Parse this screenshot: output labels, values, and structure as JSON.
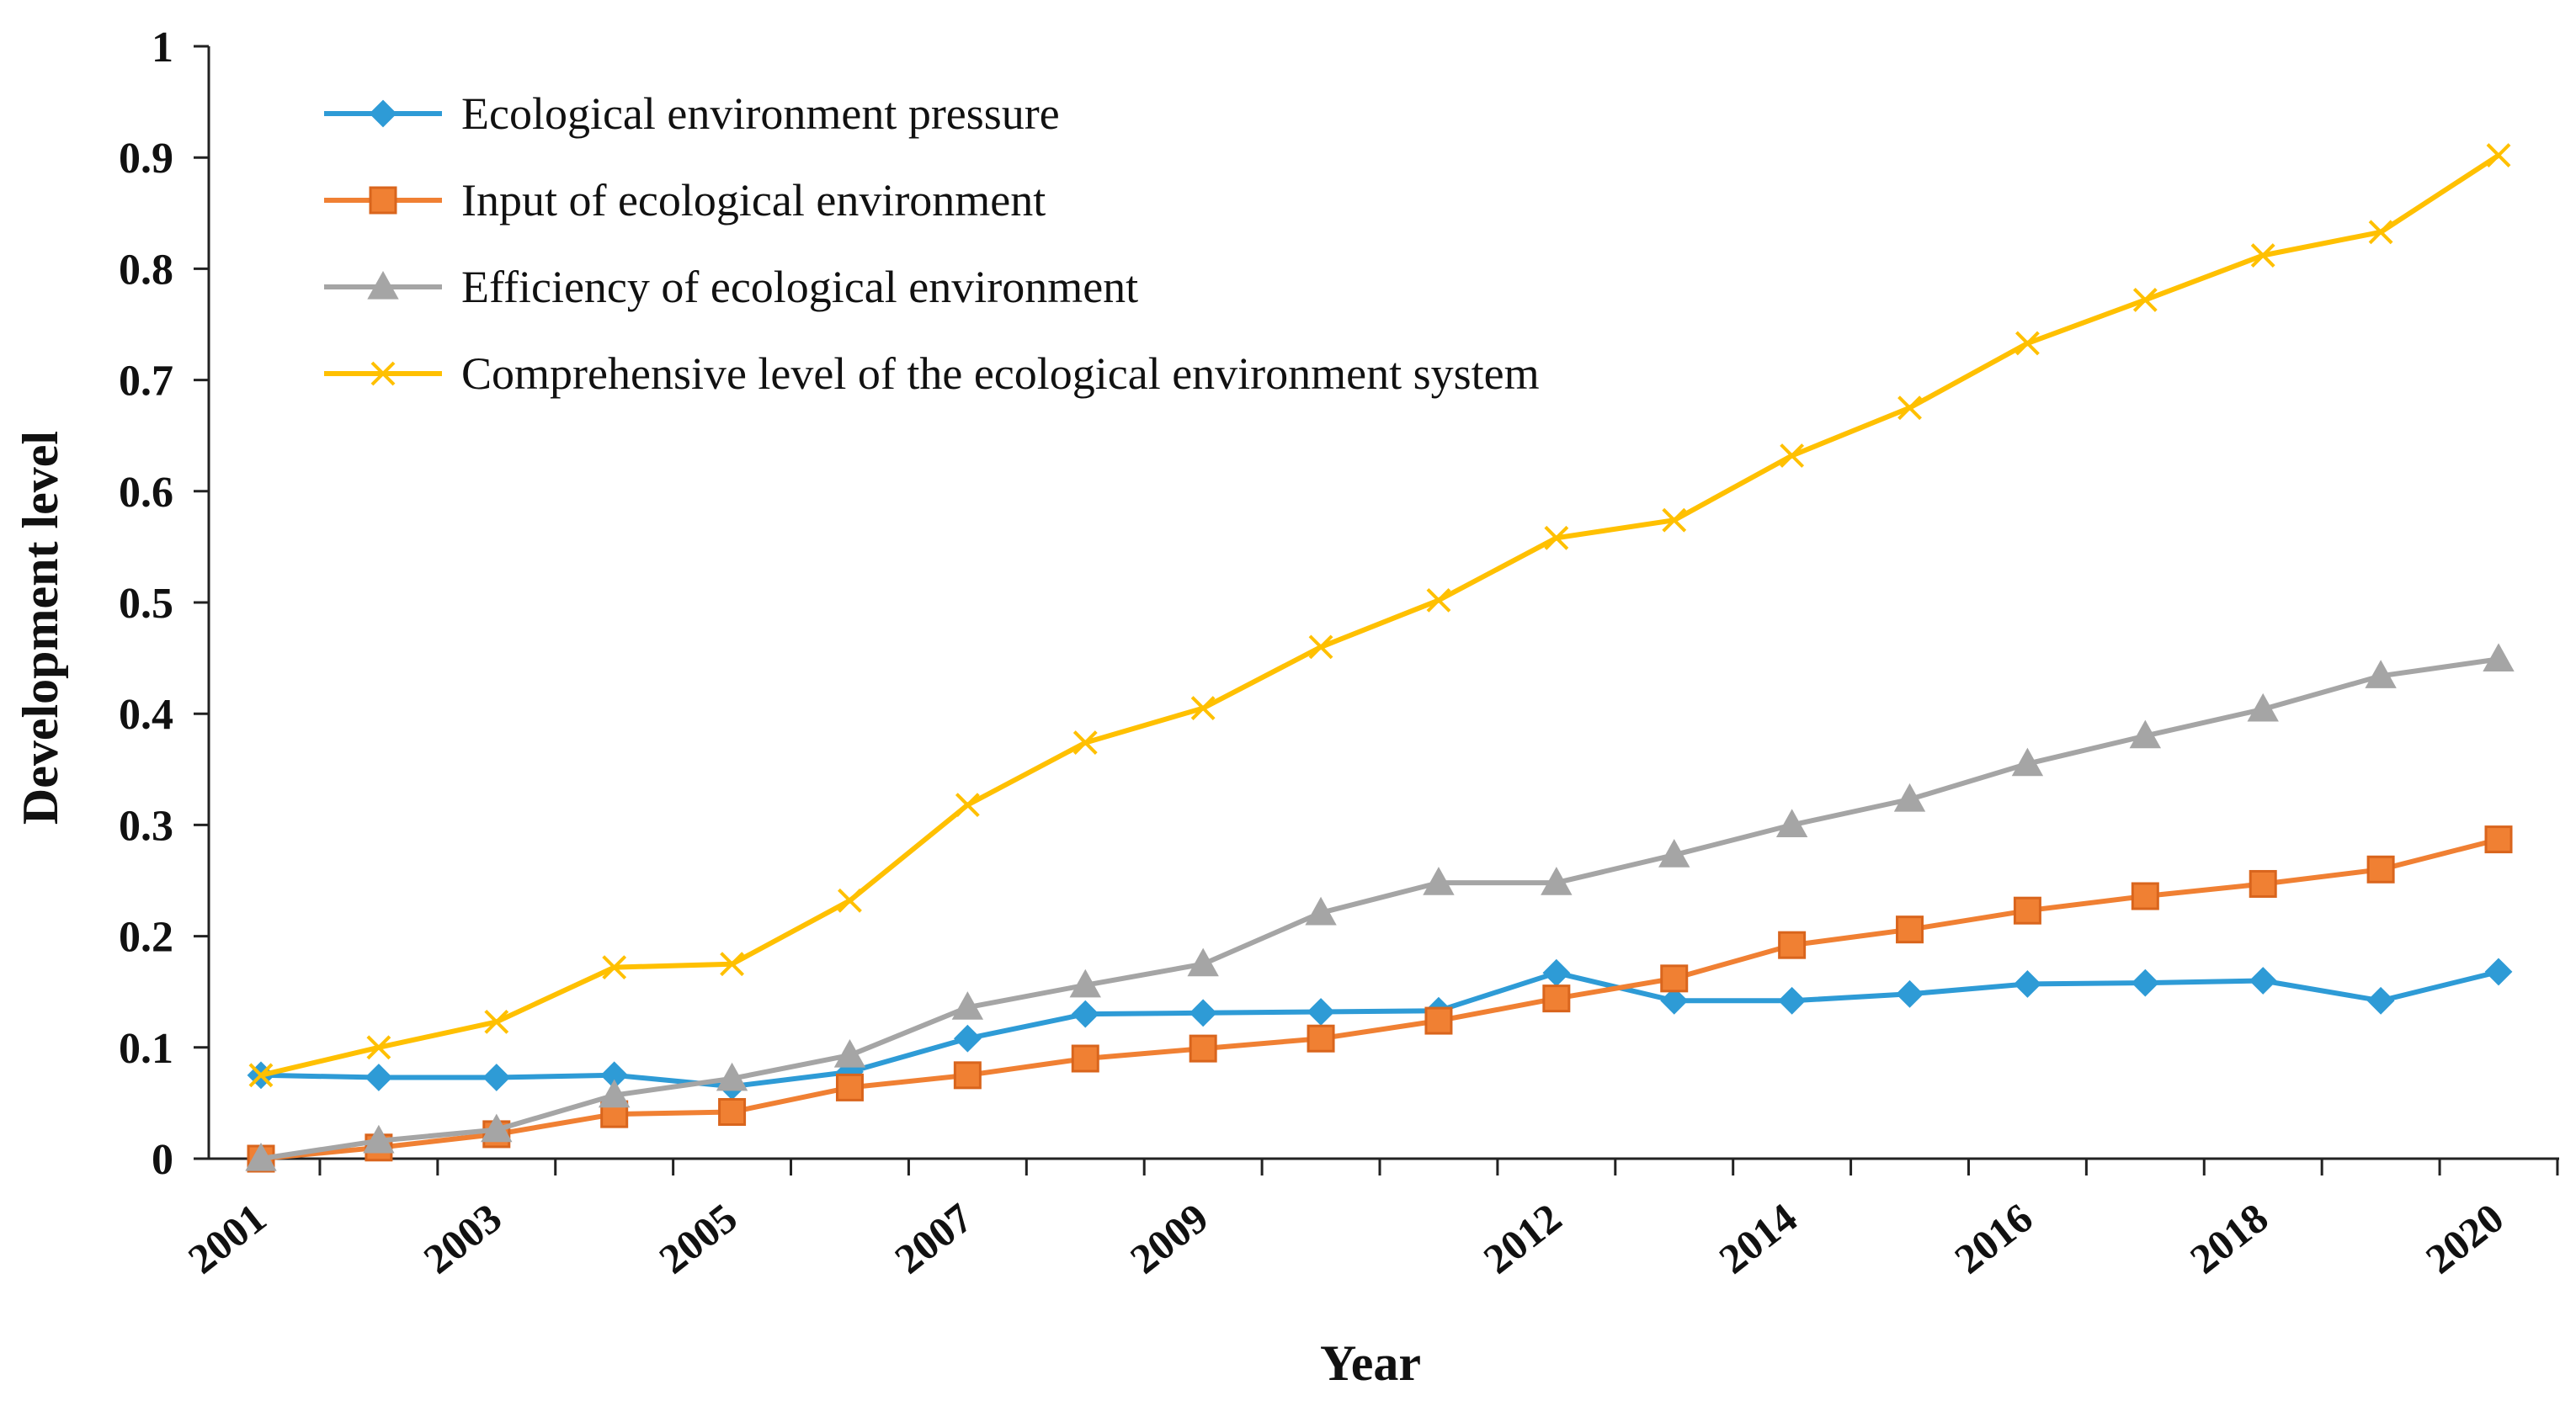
{
  "chart_data": {
    "type": "line",
    "title": "",
    "xlabel": "Year",
    "ylabel": "Development level",
    "ylim": [
      0,
      1
    ],
    "yticks": [
      "0",
      "0.1",
      "0.2",
      "0.3",
      "0.4",
      "0.5",
      "0.6",
      "0.7",
      "0.8",
      "0.9",
      "1"
    ],
    "x": [
      "2001",
      "2002",
      "2003",
      "2004",
      "2005",
      "2006",
      "2007",
      "2008",
      "2009",
      "2010",
      "2011",
      "2012",
      "2013",
      "2014",
      "2015",
      "2016",
      "2017",
      "2018",
      "2019",
      "2020"
    ],
    "x_tick_labels": [
      "2001",
      "2003",
      "2005",
      "2007",
      "2009",
      "2012",
      "2014",
      "2016",
      "2018",
      "2020"
    ],
    "legend_position": "top-left",
    "grid": false,
    "series": [
      {
        "name": "Ecological environment pressure",
        "color": "#2E9BD6",
        "marker": "diamond",
        "values": [
          0.075,
          0.073,
          0.073,
          0.075,
          0.065,
          0.078,
          0.108,
          0.13,
          0.131,
          0.132,
          0.133,
          0.167,
          0.142,
          0.142,
          0.148,
          0.157,
          0.158,
          0.16,
          0.142,
          0.168
        ]
      },
      {
        "name": "Input of ecological environment",
        "color": "#F08033",
        "marker": "square",
        "values": [
          0.0,
          0.01,
          0.022,
          0.04,
          0.042,
          0.064,
          0.075,
          0.09,
          0.099,
          0.108,
          0.124,
          0.144,
          0.162,
          0.192,
          0.206,
          0.223,
          0.236,
          0.247,
          0.26,
          0.287
        ]
      },
      {
        "name": "Efficiency of ecological environment",
        "color": "#A5A5A5",
        "marker": "triangle",
        "values": [
          0.0,
          0.016,
          0.026,
          0.057,
          0.072,
          0.093,
          0.136,
          0.156,
          0.175,
          0.221,
          0.248,
          0.248,
          0.273,
          0.3,
          0.323,
          0.355,
          0.38,
          0.404,
          0.434,
          0.449
        ]
      },
      {
        "name": "Comprehensive level of the ecological environment system",
        "color": "#FFC000",
        "marker": "x",
        "values": [
          0.075,
          0.1,
          0.123,
          0.172,
          0.175,
          0.232,
          0.318,
          0.374,
          0.405,
          0.46,
          0.502,
          0.558,
          0.574,
          0.632,
          0.675,
          0.733,
          0.772,
          0.812,
          0.833,
          0.902
        ]
      }
    ]
  }
}
